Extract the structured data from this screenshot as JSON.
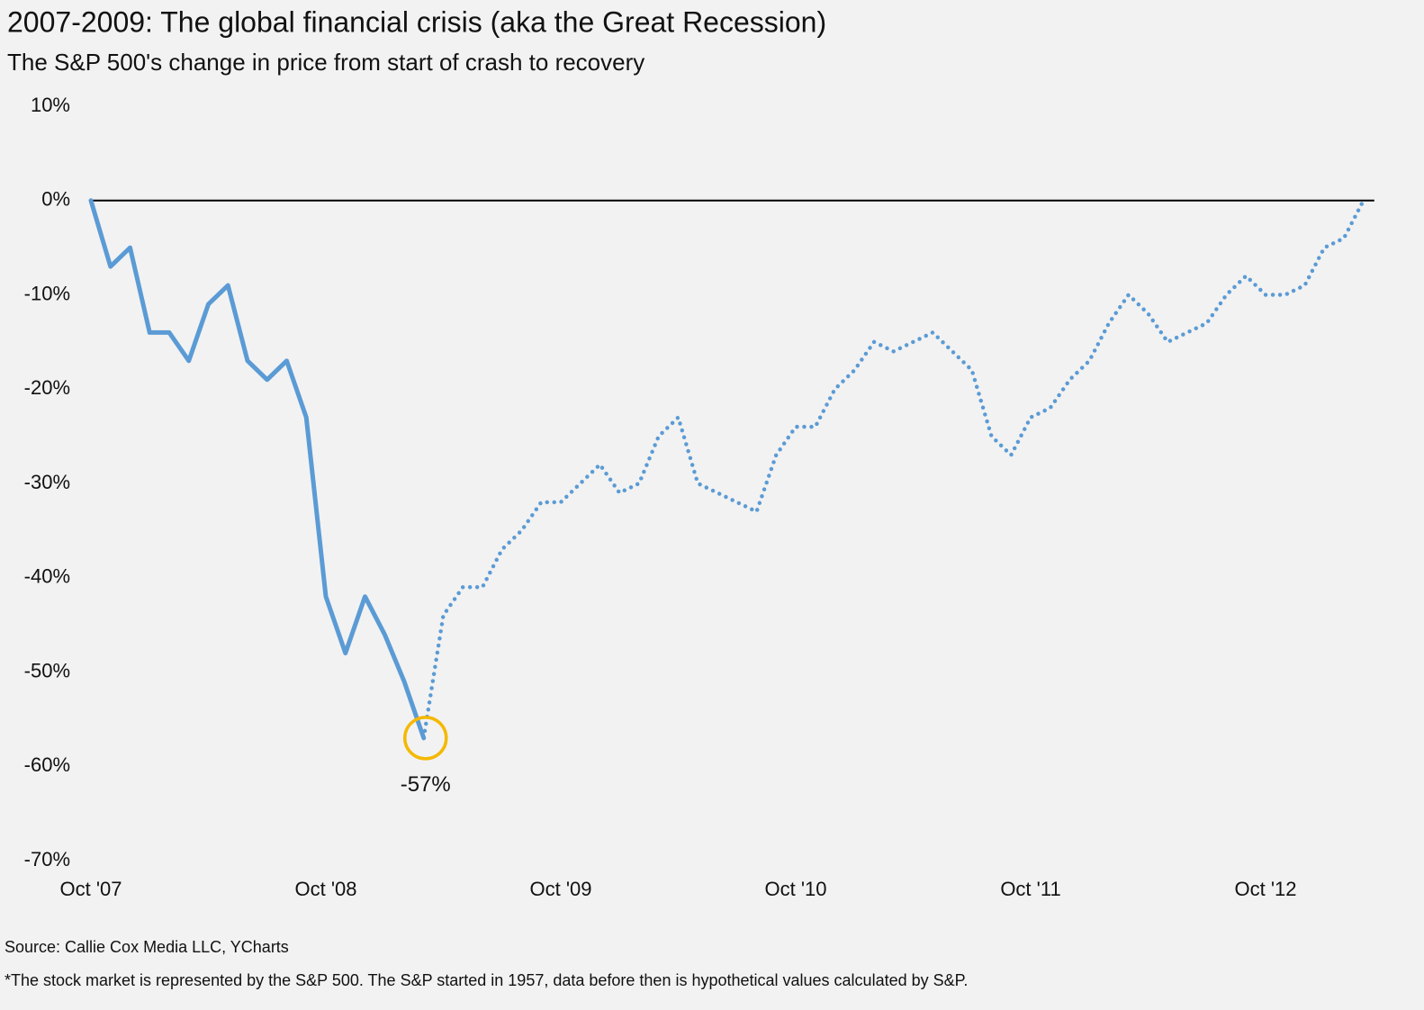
{
  "chart_data": {
    "type": "line",
    "title": "2007-2009: The global financial crisis (aka the Great Recession)",
    "subtitle": "The S&P 500's change in price from start of crash to recovery",
    "source": "Source: Callie Cox Media LLC, YCharts",
    "footnote": "*The stock market is represented by the S&P 500. The S&P started in 1957, data before then is hypothetical values calculated by S&P.",
    "x": [
      "Oct '07",
      "Nov '07",
      "Dec '07",
      "Jan '08",
      "Feb '08",
      "Mar '08",
      "Apr '08",
      "May '08",
      "Jun '08",
      "Jul '08",
      "Aug '08",
      "Sep '08",
      "Oct '08",
      "Nov '08",
      "Dec '08",
      "Jan '09",
      "Feb '09",
      "Mar '09",
      "Apr '09",
      "May '09",
      "Jun '09",
      "Jul '09",
      "Aug '09",
      "Sep '09",
      "Oct '09",
      "Nov '09",
      "Dec '09",
      "Jan '10",
      "Feb '10",
      "Mar '10",
      "Apr '10",
      "May '10",
      "Jun '10",
      "Jul '10",
      "Aug '10",
      "Sep '10",
      "Oct '10",
      "Nov '10",
      "Dec '10",
      "Jan '11",
      "Feb '11",
      "Mar '11",
      "Apr '11",
      "May '11",
      "Jun '11",
      "Jul '11",
      "Aug '11",
      "Sep '11",
      "Oct '11",
      "Nov '11",
      "Dec '11",
      "Jan '12",
      "Feb '12",
      "Mar '12",
      "Apr '12",
      "May '12",
      "Jun '12",
      "Jul '12",
      "Aug '12",
      "Sep '12",
      "Oct '12",
      "Nov '12",
      "Dec '12",
      "Jan '13",
      "Feb '13",
      "Mar '13"
    ],
    "series": [
      {
        "color": "#5b9bd5",
        "style": "solid",
        "values": [
          0,
          -7,
          -5,
          -14,
          -14,
          -17,
          -11,
          -9,
          -17,
          -19,
          -17,
          -23,
          -42,
          -48,
          -42,
          -46,
          -51,
          -57,
          null,
          null,
          null,
          null,
          null,
          null,
          null,
          null,
          null,
          null,
          null,
          null,
          null,
          null,
          null,
          null,
          null,
          null,
          null,
          null,
          null,
          null,
          null,
          null,
          null,
          null,
          null,
          null,
          null,
          null,
          null,
          null,
          null,
          null,
          null,
          null,
          null,
          null,
          null,
          null,
          null,
          null,
          null,
          null,
          null,
          null,
          null,
          null
        ]
      },
      {
        "color": "#5b9bd5",
        "style": "dotted",
        "values": [
          null,
          null,
          null,
          null,
          null,
          null,
          null,
          null,
          null,
          null,
          null,
          null,
          null,
          null,
          null,
          null,
          null,
          -57,
          -44,
          -41,
          -41,
          -37,
          -35,
          -32,
          -32,
          -30,
          -28,
          -31,
          -30,
          -25,
          -23,
          -30,
          -31,
          -32,
          -33,
          -27,
          -24,
          -24,
          -20,
          -18,
          -15,
          -16,
          -15,
          -14,
          -16,
          -18,
          -25,
          -27,
          -23,
          -22,
          -19,
          -17,
          -13,
          -10,
          -12,
          -15,
          -14,
          -13,
          -10,
          -8,
          -10,
          -10,
          -9,
          -5,
          -4,
          0
        ]
      }
    ],
    "xticks": [
      "Oct '07",
      "Oct '08",
      "Oct '09",
      "Oct '10",
      "Oct '11",
      "Oct '12"
    ],
    "ylim": [
      -70,
      10
    ],
    "yticks": [
      {
        "value": 10,
        "label": "10%"
      },
      {
        "value": 0,
        "label": "0%"
      },
      {
        "value": -10,
        "label": "-10%"
      },
      {
        "value": -20,
        "label": "-20%"
      },
      {
        "value": -30,
        "label": "-30%"
      },
      {
        "value": -40,
        "label": "-40%"
      },
      {
        "value": -50,
        "label": "-50%"
      },
      {
        "value": -60,
        "label": "-60%"
      },
      {
        "value": -70,
        "label": "-70%"
      }
    ],
    "zero_line": true,
    "grid": false,
    "annotation": {
      "text": "-57%",
      "x": "Mar '09",
      "y": -57,
      "color": "#f5b800"
    }
  }
}
